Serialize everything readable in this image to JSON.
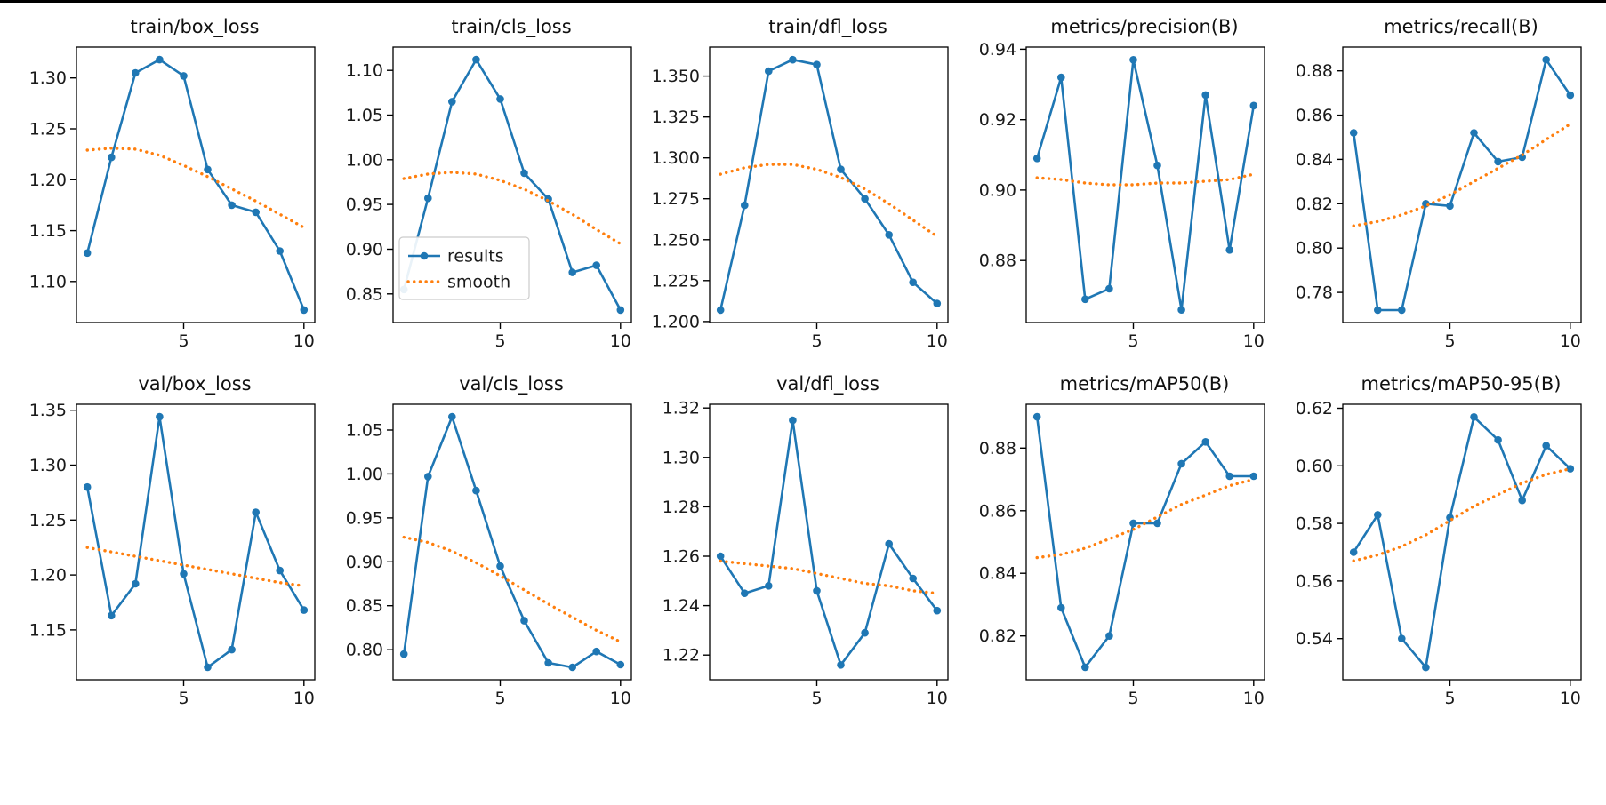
{
  "figure": {
    "background": "#ffffff",
    "top_border_color": "#000000",
    "series_colors": {
      "results": "#1f77b4",
      "smooth": "#ff7f0e"
    },
    "legend_entries": [
      "results",
      "smooth"
    ]
  },
  "chart_data": [
    {
      "type": "line",
      "title": "train/box_loss",
      "x": [
        1,
        2,
        3,
        4,
        5,
        6,
        7,
        8,
        9,
        10
      ],
      "xlim": [
        0.55,
        10.45
      ],
      "ylim": [
        1.0597,
        1.3303
      ],
      "xticks": [
        "5",
        "10"
      ],
      "yticks": [
        "1.10",
        "1.15",
        "1.20",
        "1.25",
        "1.30"
      ],
      "grid": false,
      "legend": false,
      "series": [
        {
          "name": "results",
          "color": "#1f77b4",
          "style": "solid_with_markers",
          "values": [
            1.128,
            1.222,
            1.305,
            1.318,
            1.302,
            1.21,
            1.175,
            1.168,
            1.13,
            1.072
          ]
        },
        {
          "name": "smooth",
          "color": "#ff7f0e",
          "style": "dotted",
          "values": [
            1.229,
            1.231,
            1.23,
            1.224,
            1.214,
            1.203,
            1.191,
            1.179,
            1.166,
            1.153
          ]
        }
      ]
    },
    {
      "type": "line",
      "title": "train/cls_loss",
      "x": [
        1,
        2,
        3,
        4,
        5,
        6,
        7,
        8,
        9,
        10
      ],
      "xlim": [
        0.55,
        10.45
      ],
      "ylim": [
        0.818,
        1.126
      ],
      "xticks": [
        "5",
        "10"
      ],
      "yticks": [
        "0.85",
        "0.90",
        "0.95",
        "1.00",
        "1.05",
        "1.10"
      ],
      "grid": false,
      "legend": true,
      "legend_position": "lower left",
      "series": [
        {
          "name": "results",
          "color": "#1f77b4",
          "style": "solid_with_markers",
          "values": [
            0.855,
            0.957,
            1.065,
            1.112,
            1.068,
            0.985,
            0.956,
            0.874,
            0.882,
            0.832
          ]
        },
        {
          "name": "smooth",
          "color": "#ff7f0e",
          "style": "dotted",
          "values": [
            0.979,
            0.984,
            0.986,
            0.984,
            0.977,
            0.967,
            0.954,
            0.939,
            0.922,
            0.906
          ]
        }
      ]
    },
    {
      "type": "line",
      "title": "train/dfl_loss",
      "x": [
        1,
        2,
        3,
        4,
        5,
        6,
        7,
        8,
        9,
        10
      ],
      "xlim": [
        0.55,
        10.45
      ],
      "ylim": [
        1.1994,
        1.3677
      ],
      "xticks": [
        "5",
        "10"
      ],
      "yticks": [
        "1.200",
        "1.225",
        "1.250",
        "1.275",
        "1.300",
        "1.325",
        "1.350"
      ],
      "grid": false,
      "legend": false,
      "series": [
        {
          "name": "results",
          "color": "#1f77b4",
          "style": "solid_with_markers",
          "values": [
            1.207,
            1.271,
            1.353,
            1.36,
            1.357,
            1.293,
            1.275,
            1.253,
            1.224,
            1.211
          ]
        },
        {
          "name": "smooth",
          "color": "#ff7f0e",
          "style": "dotted",
          "values": [
            1.29,
            1.294,
            1.296,
            1.296,
            1.293,
            1.288,
            1.281,
            1.272,
            1.262,
            1.252
          ]
        }
      ]
    },
    {
      "type": "line",
      "title": "metrics/precision(B)",
      "x": [
        1,
        2,
        3,
        4,
        5,
        6,
        7,
        8,
        9,
        10
      ],
      "xlim": [
        0.55,
        10.45
      ],
      "ylim": [
        0.8624,
        0.9406
      ],
      "xticks": [
        "5",
        "10"
      ],
      "yticks": [
        "0.88",
        "0.90",
        "0.92",
        "0.94"
      ],
      "grid": false,
      "legend": false,
      "series": [
        {
          "name": "results",
          "color": "#1f77b4",
          "style": "solid_with_markers",
          "values": [
            0.909,
            0.932,
            0.869,
            0.872,
            0.937,
            0.907,
            0.866,
            0.927,
            0.883,
            0.924
          ]
        },
        {
          "name": "smooth",
          "color": "#ff7f0e",
          "style": "dotted",
          "values": [
            0.9035,
            0.903,
            0.902,
            0.9015,
            0.9015,
            0.902,
            0.902,
            0.9025,
            0.903,
            0.9045
          ]
        }
      ]
    },
    {
      "type": "line",
      "title": "metrics/recall(B)",
      "x": [
        1,
        2,
        3,
        4,
        5,
        6,
        7,
        8,
        9,
        10
      ],
      "xlim": [
        0.55,
        10.45
      ],
      "ylim": [
        0.7664,
        0.8907
      ],
      "xticks": [
        "5",
        "10"
      ],
      "yticks": [
        "0.78",
        "0.80",
        "0.82",
        "0.84",
        "0.86",
        "0.88"
      ],
      "grid": false,
      "legend": false,
      "series": [
        {
          "name": "results",
          "color": "#1f77b4",
          "style": "solid_with_markers",
          "values": [
            0.852,
            0.772,
            0.772,
            0.82,
            0.819,
            0.852,
            0.839,
            0.841,
            0.885,
            0.869
          ]
        },
        {
          "name": "smooth",
          "color": "#ff7f0e",
          "style": "dotted",
          "values": [
            0.81,
            0.812,
            0.815,
            0.819,
            0.824,
            0.83,
            0.836,
            0.842,
            0.849,
            0.856
          ]
        }
      ]
    },
    {
      "type": "line",
      "title": "val/box_loss",
      "x": [
        1,
        2,
        3,
        4,
        5,
        6,
        7,
        8,
        9,
        10
      ],
      "xlim": [
        0.55,
        10.45
      ],
      "ylim": [
        1.1046,
        1.3554
      ],
      "xticks": [
        "5",
        "10"
      ],
      "yticks": [
        "1.15",
        "1.20",
        "1.25",
        "1.30",
        "1.35"
      ],
      "grid": false,
      "legend": false,
      "series": [
        {
          "name": "results",
          "color": "#1f77b4",
          "style": "solid_with_markers",
          "values": [
            1.28,
            1.163,
            1.192,
            1.344,
            1.201,
            1.116,
            1.132,
            1.257,
            1.204,
            1.168
          ]
        },
        {
          "name": "smooth",
          "color": "#ff7f0e",
          "style": "dotted",
          "values": [
            1.225,
            1.221,
            1.217,
            1.213,
            1.209,
            1.205,
            1.201,
            1.197,
            1.193,
            1.19
          ]
        }
      ]
    },
    {
      "type": "line",
      "title": "val/cls_loss",
      "x": [
        1,
        2,
        3,
        4,
        5,
        6,
        7,
        8,
        9,
        10
      ],
      "xlim": [
        0.55,
        10.45
      ],
      "ylim": [
        0.7658,
        1.0793
      ],
      "xticks": [
        "5",
        "10"
      ],
      "yticks": [
        "0.80",
        "0.85",
        "0.90",
        "0.95",
        "1.00",
        "1.05"
      ],
      "grid": false,
      "legend": false,
      "series": [
        {
          "name": "results",
          "color": "#1f77b4",
          "style": "solid_with_markers",
          "values": [
            0.795,
            0.997,
            1.065,
            0.981,
            0.895,
            0.833,
            0.785,
            0.78,
            0.798,
            0.783
          ]
        },
        {
          "name": "smooth",
          "color": "#ff7f0e",
          "style": "dotted",
          "values": [
            0.928,
            0.922,
            0.912,
            0.899,
            0.884,
            0.868,
            0.852,
            0.837,
            0.822,
            0.809
          ]
        }
      ]
    },
    {
      "type": "line",
      "title": "val/dfl_loss",
      "x": [
        1,
        2,
        3,
        4,
        5,
        6,
        7,
        8,
        9,
        10
      ],
      "xlim": [
        0.55,
        10.45
      ],
      "ylim": [
        1.21,
        1.3215
      ],
      "xticks": [
        "5",
        "10"
      ],
      "yticks": [
        "1.22",
        "1.24",
        "1.26",
        "1.28",
        "1.30",
        "1.32"
      ],
      "grid": false,
      "legend": false,
      "series": [
        {
          "name": "results",
          "color": "#1f77b4",
          "style": "solid_with_markers",
          "values": [
            1.26,
            1.245,
            1.248,
            1.315,
            1.246,
            1.216,
            1.229,
            1.265,
            1.251,
            1.238
          ]
        },
        {
          "name": "smooth",
          "color": "#ff7f0e",
          "style": "dotted",
          "values": [
            1.258,
            1.257,
            1.256,
            1.255,
            1.253,
            1.251,
            1.249,
            1.248,
            1.246,
            1.245
          ]
        }
      ]
    },
    {
      "type": "line",
      "title": "metrics/mAP50(B)",
      "x": [
        1,
        2,
        3,
        4,
        5,
        6,
        7,
        8,
        9,
        10
      ],
      "xlim": [
        0.55,
        10.45
      ],
      "ylim": [
        0.806,
        0.894
      ],
      "xticks": [
        "5",
        "10"
      ],
      "yticks": [
        "0.82",
        "0.84",
        "0.86",
        "0.88"
      ],
      "grid": false,
      "legend": false,
      "series": [
        {
          "name": "results",
          "color": "#1f77b4",
          "style": "solid_with_markers",
          "values": [
            0.89,
            0.829,
            0.81,
            0.82,
            0.856,
            0.856,
            0.875,
            0.882,
            0.871,
            0.871
          ]
        },
        {
          "name": "smooth",
          "color": "#ff7f0e",
          "style": "dotted",
          "values": [
            0.845,
            0.846,
            0.848,
            0.851,
            0.854,
            0.858,
            0.862,
            0.865,
            0.868,
            0.87
          ]
        }
      ]
    },
    {
      "type": "line",
      "title": "metrics/mAP50-95(B)",
      "x": [
        1,
        2,
        3,
        4,
        5,
        6,
        7,
        8,
        9,
        10
      ],
      "xlim": [
        0.55,
        10.45
      ],
      "ylim": [
        0.5257,
        0.6214
      ],
      "xticks": [
        "5",
        "10"
      ],
      "yticks": [
        "0.54",
        "0.56",
        "0.58",
        "0.60",
        "0.62"
      ],
      "grid": false,
      "legend": false,
      "series": [
        {
          "name": "results",
          "color": "#1f77b4",
          "style": "solid_with_markers",
          "values": [
            0.57,
            0.583,
            0.54,
            0.53,
            0.582,
            0.617,
            0.609,
            0.588,
            0.607,
            0.599
          ]
        },
        {
          "name": "smooth",
          "color": "#ff7f0e",
          "style": "dotted",
          "values": [
            0.567,
            0.569,
            0.572,
            0.576,
            0.581,
            0.586,
            0.59,
            0.594,
            0.597,
            0.599
          ]
        }
      ]
    }
  ]
}
